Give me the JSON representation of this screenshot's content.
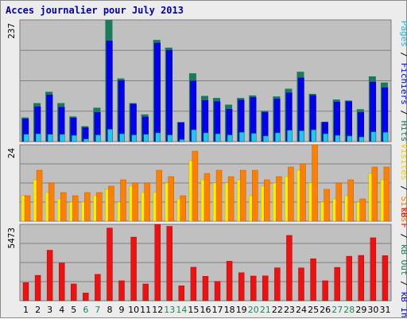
{
  "chart_data": {
    "type": "bar",
    "title": "Acces journalier pour July 2013",
    "categories": [
      "1",
      "2",
      "3",
      "4",
      "5",
      "6",
      "7",
      "8",
      "9",
      "10",
      "11",
      "12",
      "13",
      "14",
      "15",
      "16",
      "17",
      "18",
      "19",
      "20",
      "21",
      "22",
      "23",
      "24",
      "25",
      "26",
      "27",
      "28",
      "29",
      "30",
      "31"
    ],
    "weekend_categories": [
      "6",
      "7",
      "13",
      "14",
      "20",
      "21",
      "27",
      "28"
    ],
    "panels": [
      {
        "name": "hits",
        "ymax": 237,
        "ymax_label": "237",
        "series": [
          {
            "name": "Hits",
            "color": "#1a7a5a",
            "values": [
              47,
              75,
              97,
              75,
              49,
              30,
              66,
              237,
              123,
              75,
              53,
              198,
              183,
              38,
              133,
              89,
              85,
              72,
              85,
              90,
              60,
              88,
              103,
              136,
              93,
              38,
              82,
              80,
              63,
              127,
              115
            ]
          },
          {
            "name": "Fichiers",
            "color": "#0000ee",
            "values": [
              44,
              68,
              91,
              67,
              46,
              27,
              57,
              196,
              119,
              73,
              48,
              192,
              178,
              37,
              118,
              80,
              78,
              63,
              81,
              86,
              57,
              83,
              95,
              124,
              90,
              38,
              77,
              78,
              57,
              116,
              105
            ]
          },
          {
            "name": "Pages",
            "color": "#22c6f0",
            "values": [
              14,
              15,
              14,
              14,
              12,
              5,
              13,
              24,
              15,
              13,
              14,
              17,
              13,
              4,
              23,
              17,
              15,
              13,
              18,
              16,
              11,
              17,
              22,
              21,
              23,
              15,
              12,
              11,
              9,
              19,
              18
            ]
          }
        ]
      },
      {
        "name": "visits",
        "ymax": 24,
        "ymax_label": "24",
        "series": [
          {
            "name": "Visites",
            "color": "#ffee00",
            "values": [
              8,
              13,
              9,
              7,
              6,
              6,
              8,
              10,
              6,
              11,
              9,
              9,
              12,
              7,
              19,
              13,
              12,
              12,
              13,
              8,
              11,
              12,
              14,
              16,
              12,
              6,
              7,
              8,
              6,
              15,
              13
            ]
          },
          {
            "name": "Sites",
            "color": "#ff8000",
            "values": [
              8,
              16,
              12,
              9,
              8,
              9,
              9,
              11,
              13,
              12,
              12,
              16,
              14,
              8,
              22,
              15,
              16,
              14,
              16,
              16,
              13,
              14,
              17,
              18,
              24,
              10,
              12,
              13,
              7,
              17,
              17
            ]
          }
        ]
      },
      {
        "name": "traffic",
        "ymax": 5473,
        "ymax_label": "5473",
        "series": [
          {
            "name": "kB F",
            "color": "#ee1111",
            "values": [
              1300,
              1820,
              3620,
              2700,
              1200,
              560,
              1890,
              5210,
              1430,
              4560,
              1200,
              5473,
              5330,
              1070,
              2400,
              1750,
              1380,
              2830,
              2010,
              1770,
              1780,
              2360,
              4680,
              2350,
              3010,
              1430,
              2390,
              3190,
              3250,
              4510,
              3230
            ]
          }
        ]
      }
    ],
    "right_labels": [
      {
        "text": "Pages",
        "color": "#22b8e0"
      },
      {
        "text": " / ",
        "color": "#000000"
      },
      {
        "text": "Fichiers",
        "color": "#0000ee"
      },
      {
        "text": " / ",
        "color": "#000000"
      },
      {
        "text": "Hits",
        "color": "#1a7a5a"
      }
    ],
    "right_labels_2": [
      {
        "text": "Visites",
        "color": "#e8d400"
      },
      {
        "text": " / ",
        "color": "#000000"
      },
      {
        "text": "Sites",
        "color": "#ff8000"
      }
    ],
    "right_labels_3": [
      {
        "text": "kB F",
        "color": "#ee1111"
      },
      {
        "text": " / ",
        "color": "#000000"
      },
      {
        "text": "kB Out",
        "color": "#1a7a5a"
      },
      {
        "text": " / ",
        "color": "#000000"
      },
      {
        "text": "kB In",
        "color": "#0000ee"
      }
    ],
    "colors": {
      "panel_bg": "#c0c0c0",
      "frame_bg": "#ececec",
      "grid": "#808080",
      "weekday_tick": "#000000",
      "weekend_tick": "#1a8a5a"
    }
  }
}
